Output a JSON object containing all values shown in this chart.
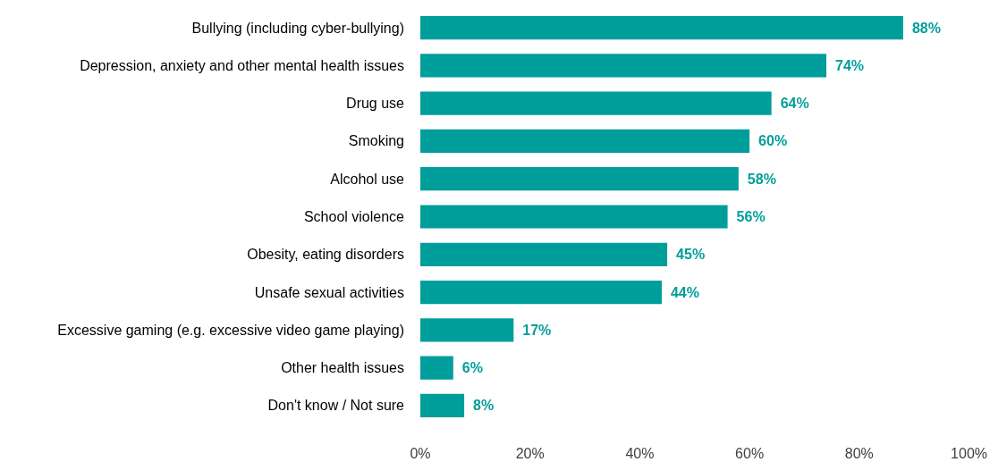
{
  "chart_data": {
    "type": "bar",
    "orientation": "horizontal",
    "categories": [
      "Bullying (including cyber-bullying)",
      "Depression, anxiety and other mental health issues",
      "Drug use",
      "Smoking",
      "Alcohol use",
      "School violence",
      "Obesity, eating disorders",
      "Unsafe sexual activities",
      "Excessive gaming (e.g. excessive video game playing)",
      "Other health issues",
      "Don't know / Not sure"
    ],
    "values": [
      88,
      74,
      64,
      60,
      58,
      56,
      45,
      44,
      17,
      6,
      8
    ],
    "value_labels": [
      "88%",
      "74%",
      "64%",
      "60%",
      "58%",
      "56%",
      "45%",
      "44%",
      "17%",
      "6%",
      "8%"
    ],
    "color": "#009e9a",
    "xlim": [
      0,
      100
    ],
    "xticks": [
      {
        "value": 0,
        "label": "0%"
      },
      {
        "value": 20,
        "label": "20%"
      },
      {
        "value": 40,
        "label": "40%"
      },
      {
        "value": 60,
        "label": "60%"
      },
      {
        "value": 80,
        "label": "80%"
      },
      {
        "value": 100,
        "label": "100%"
      }
    ],
    "grid": false
  }
}
